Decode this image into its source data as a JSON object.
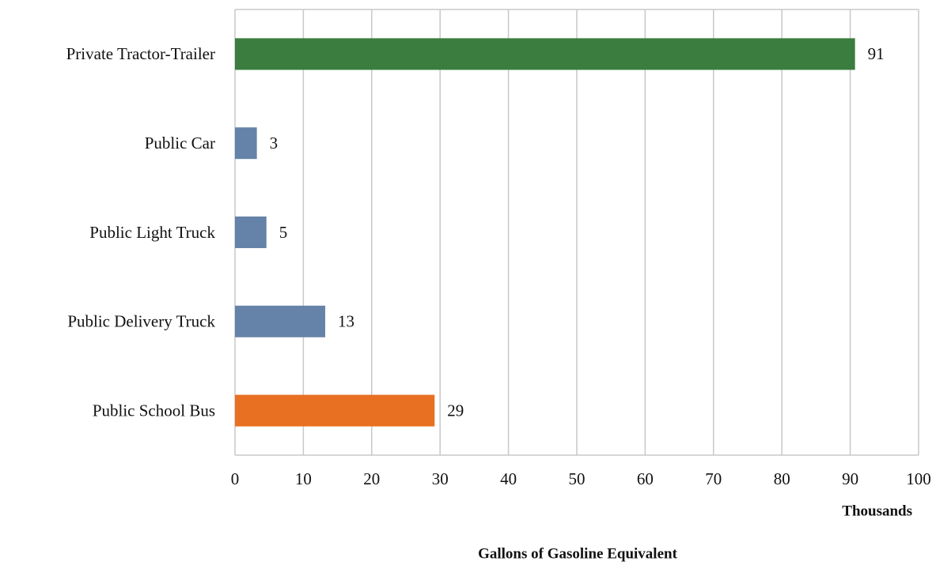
{
  "chart_data": {
    "type": "hbar",
    "categories": [
      "Private Tractor-Trailer",
      "Public Car",
      "Public Light Truck",
      "Public Delivery Truck",
      "Public School Bus"
    ],
    "values": [
      90.7,
      3.2,
      4.6,
      13.2,
      29.2
    ],
    "value_labels": [
      "91",
      "3",
      "5",
      "13",
      "29"
    ],
    "colors": [
      "#3a7d3e",
      "#6583a8",
      "#6583a8",
      "#6583a8",
      "#e87022"
    ],
    "xlim": [
      0,
      100
    ],
    "xticks": [
      0,
      10,
      20,
      30,
      40,
      50,
      60,
      70,
      80,
      90,
      100
    ],
    "xlabel": "Gallons of Gasoline Equivalent",
    "x_unit_label": "Thousands",
    "grid": true
  }
}
